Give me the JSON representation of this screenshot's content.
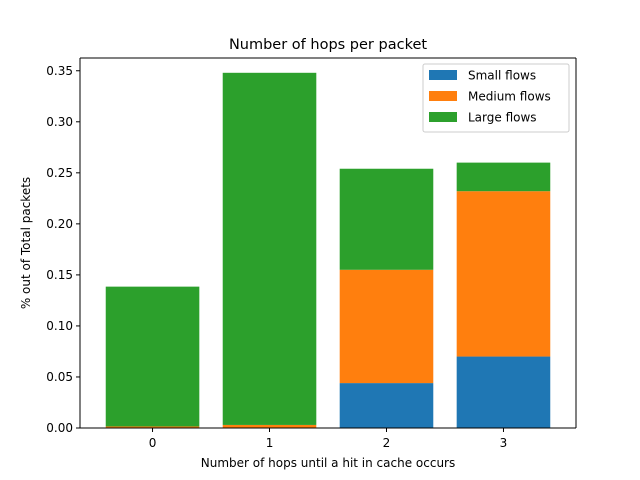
{
  "chart_data": {
    "type": "bar",
    "stacked": true,
    "title": "Number of hops per packet",
    "xlabel": "Number of hops until a hit in cache occurs",
    "ylabel": "% out of Total packets",
    "categories": [
      "0",
      "1",
      "2",
      "3"
    ],
    "ylim": [
      0,
      0.35
    ],
    "yticks": [
      "0.00",
      "0.05",
      "0.10",
      "0.15",
      "0.20",
      "0.25",
      "0.30",
      "0.35"
    ],
    "ytick_values": [
      0,
      0.05,
      0.1,
      0.15,
      0.2,
      0.25,
      0.3,
      0.35
    ],
    "grid": false,
    "legend": "top-right",
    "series": [
      {
        "name": "Small flows",
        "color": "#1f77b4",
        "values": [
          0.0,
          0.0,
          0.044,
          0.07
        ]
      },
      {
        "name": "Medium flows",
        "color": "#ff7f0e",
        "values": [
          0.0015,
          0.003,
          0.111,
          0.162
        ]
      },
      {
        "name": "Large flows",
        "color": "#2ca02c",
        "values": [
          0.137,
          0.345,
          0.099,
          0.028
        ]
      }
    ]
  }
}
